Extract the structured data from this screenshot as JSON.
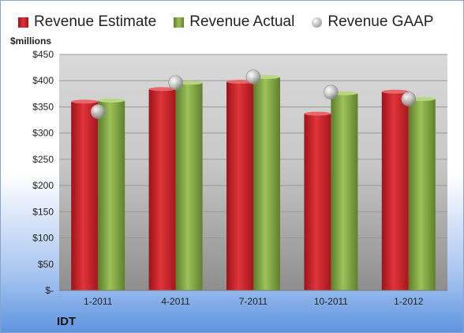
{
  "chart_data": {
    "type": "bar",
    "ylabel": "$millions",
    "company": "IDT",
    "categories": [
      "1-2011",
      "4-2011",
      "7-2011",
      "10-2011",
      "1-2012"
    ],
    "yticks": [
      "$-",
      "$50",
      "$100",
      "$150",
      "$200",
      "$250",
      "$300",
      "$350",
      "$400",
      "$450"
    ],
    "ylim": [
      0,
      450
    ],
    "legend_position": "top",
    "grid": true,
    "series": [
      {
        "name": "Revenue Estimate",
        "kind": "bar",
        "color": "#cc2027",
        "values": [
          360,
          384,
          398,
          337,
          379
        ]
      },
      {
        "name": "Revenue Actual",
        "kind": "bar",
        "color": "#80a341",
        "values": [
          362,
          396,
          407,
          376,
          365
        ]
      },
      {
        "name": "Revenue GAAP",
        "kind": "marker",
        "color": "#b8b8b8",
        "values": [
          341,
          396,
          407,
          378,
          365
        ]
      }
    ]
  }
}
